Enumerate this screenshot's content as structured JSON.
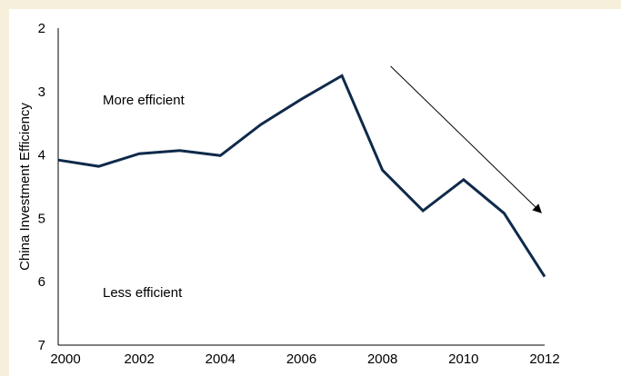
{
  "chart_data": {
    "type": "line",
    "title": "",
    "xlabel": "",
    "ylabel": "China Investment Efficiency",
    "x": [
      2000,
      2001,
      2002,
      2003,
      2004,
      2005,
      2006,
      2007,
      2008,
      2009,
      2010,
      2011,
      2012
    ],
    "series": [
      {
        "values": [
          4.08,
          4.18,
          3.98,
          3.93,
          4.01,
          3.52,
          3.12,
          2.75,
          4.24,
          4.88,
          4.39,
          4.92,
          5.92
        ]
      }
    ],
    "xlim": [
      2000,
      2012
    ],
    "ylim": [
      2,
      7
    ],
    "y_inverted": true,
    "x_ticks": [
      2000,
      2002,
      2004,
      2006,
      2008,
      2010,
      2012
    ],
    "y_ticks": [
      2,
      3,
      4,
      5,
      6,
      7
    ],
    "annotations": {
      "top": "More efficient",
      "bottom": "Less efficient",
      "arrow": {
        "from": [
          2008.2,
          2.6
        ],
        "to": [
          2011.9,
          4.9
        ]
      }
    },
    "grid": false,
    "colors": {
      "line": "#0f2a4a",
      "arrow": "#000000",
      "background": "#f5efdc"
    }
  }
}
